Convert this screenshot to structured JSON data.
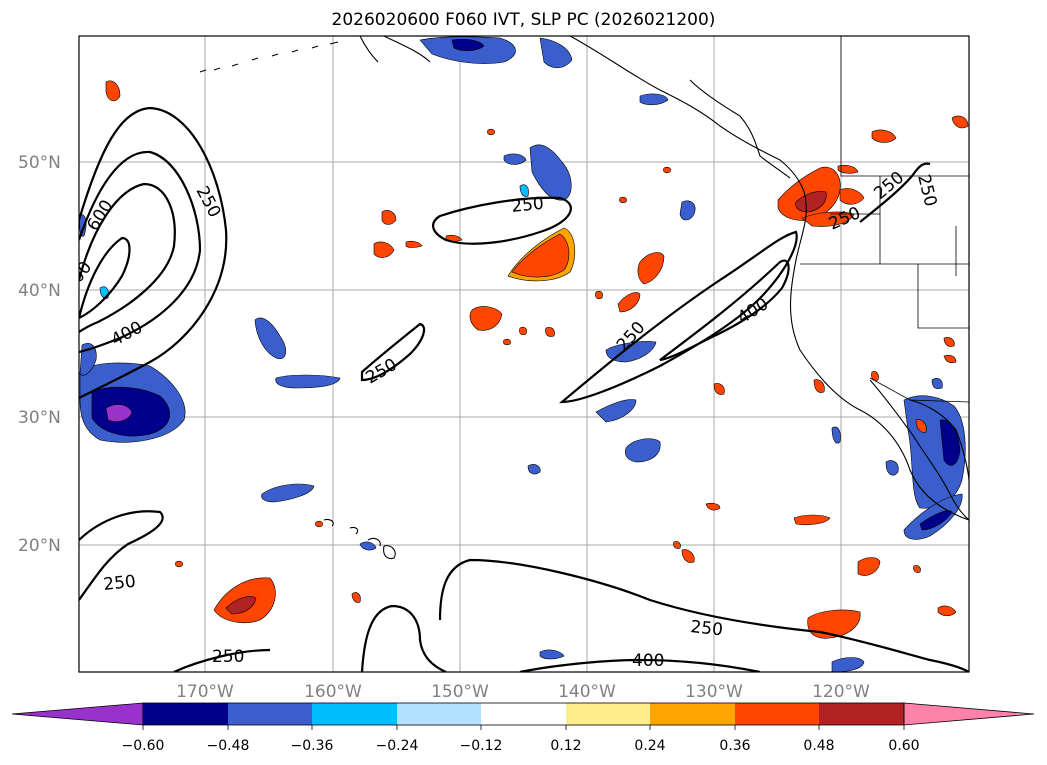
{
  "title": "2026020600 F060 IVT, SLP PC (2026021200)",
  "map": {
    "lat_labels": [
      "50°N",
      "40°N",
      "30°N",
      "20°N"
    ],
    "lon_labels": [
      "170°W",
      "160°W",
      "150°W",
      "140°W",
      "130°W",
      "120°W"
    ],
    "contour_labels": [
      "250",
      "600",
      "400",
      "00",
      "250",
      "250",
      "250",
      "400",
      "250",
      "250",
      "250",
      "250",
      "250",
      "400",
      "250"
    ],
    "colors": {
      "land_outline": "#000000",
      "grid": "#a0a0a0",
      "contour": "#000000"
    }
  },
  "colorbar": {
    "ticks": [
      "−0.60",
      "−0.48",
      "−0.36",
      "−0.24",
      "−0.12",
      "0.12",
      "0.24",
      "0.36",
      "0.48",
      "0.60"
    ],
    "colors": [
      "#9932cc",
      "#00008b",
      "#3a5fcd",
      "#00bfff",
      "#b0e2ff",
      "#ffffff",
      "#ffec8b",
      "#ffa500",
      "#ff4500",
      "#b22222",
      "#ff82ab"
    ]
  }
}
